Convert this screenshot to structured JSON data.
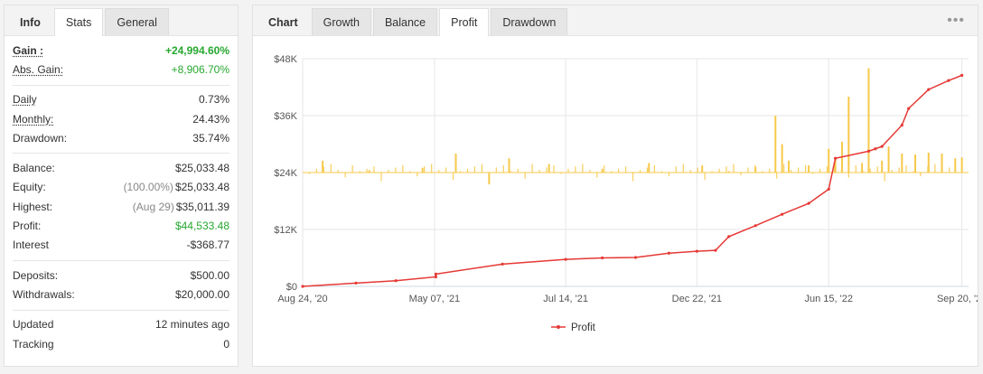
{
  "left_tabs": [
    "Info",
    "Stats",
    "General"
  ],
  "stats": {
    "gain": {
      "label": "Gain :",
      "value": "+24,994.60%"
    },
    "abs_gain": {
      "label": "Abs. Gain:",
      "value": "+8,906.70%"
    },
    "daily": {
      "label": "Daily",
      "value": "0.73%"
    },
    "monthly": {
      "label": "Monthly:",
      "value": "24.43%"
    },
    "drawdown": {
      "label": "Drawdown:",
      "value": "35.74%"
    },
    "balance": {
      "label": "Balance:",
      "value": "$25,033.48"
    },
    "equity": {
      "label": "Equity:",
      "note": "(100.00%)",
      "value": "$25,033.48"
    },
    "highest": {
      "label": "Highest:",
      "note": "(Aug 29)",
      "value": "$35,011.39"
    },
    "profit": {
      "label": "Profit:",
      "value": "$44,533.48"
    },
    "interest": {
      "label": "Interest",
      "value": "-$368.77"
    },
    "deposits": {
      "label": "Deposits:",
      "value": "$500.00"
    },
    "withdrawals": {
      "label": "Withdrawals:",
      "value": "$20,000.00"
    },
    "updated": {
      "label": "Updated",
      "value": "12 minutes ago"
    },
    "tracking": {
      "label": "Tracking",
      "value": "0"
    }
  },
  "right_tabs": [
    "Chart",
    "Growth",
    "Balance",
    "Profit",
    "Drawdown"
  ],
  "more_icon": "•••",
  "colors": {
    "line": "#e53935",
    "bars": "#f7c94b",
    "gain": "#27a830"
  },
  "chart_data": {
    "type": "line",
    "series": [
      {
        "name": "Profit",
        "x": [
          "Aug 24, '20",
          "Nov 01, '20",
          "Jan 15, '21",
          "Mar 15, '21",
          "May 07, '21",
          "Jun 10, '21",
          "Jul 14, '21",
          "Aug 20, '21",
          "Sep 30, '21",
          "Nov 10, '21",
          "Dec 22, '21",
          "Feb 01, '22",
          "Feb 20, '22",
          "Mar 10, '22",
          "Apr 20, '22",
          "May 25, '22",
          "Jun 15, '22",
          "Jun 25, '22",
          "Jul 20, '22",
          "Jul 30, '22",
          "Aug 05, '22",
          "Aug 20, '22",
          "Aug 29, '22",
          "Sep 10, '22",
          "Sep 20, '22",
          "Sep 25, '22"
        ],
        "values": [
          0,
          700,
          1200,
          2000,
          2600,
          4700,
          5700,
          6000,
          6100,
          7000,
          7400,
          7600,
          10500,
          12800,
          15200,
          17500,
          20500,
          27000,
          28500,
          29000,
          29500,
          34000,
          37500,
          41500,
          43400,
          44500
        ]
      }
    ],
    "bars": {
      "x_index": [
        0.03,
        0.1,
        0.18,
        0.23,
        0.28,
        0.31,
        0.37,
        0.45,
        0.52,
        0.6,
        0.64,
        0.68,
        0.71,
        0.72,
        0.73,
        0.76,
        0.79,
        0.8,
        0.81,
        0.82,
        0.84,
        0.85,
        0.87,
        0.88,
        0.9,
        0.92,
        0.94,
        0.96,
        0.98,
        0.99
      ],
      "values": [
        2500,
        500,
        1000,
        4000,
        -2500,
        3000,
        1800,
        800,
        2000,
        1500,
        300,
        1200,
        12000,
        6000,
        2500,
        1500,
        5000,
        3000,
        6500,
        16000,
        2000,
        22000,
        2500,
        5500,
        4000,
        3800,
        4200,
        4000,
        3000,
        3200
      ]
    },
    "x_ticks": [
      "Aug 24, '20",
      "May 07, '21",
      "Jul 14, '21",
      "Dec 22, '21",
      "Jun 15, '22",
      "Sep 20, '22"
    ],
    "y_ticks": [
      "$0",
      "$12K",
      "$24K",
      "$36K",
      "$48K"
    ],
    "ylim": [
      0,
      48000
    ],
    "grid": true,
    "legend": "bottom-center"
  }
}
